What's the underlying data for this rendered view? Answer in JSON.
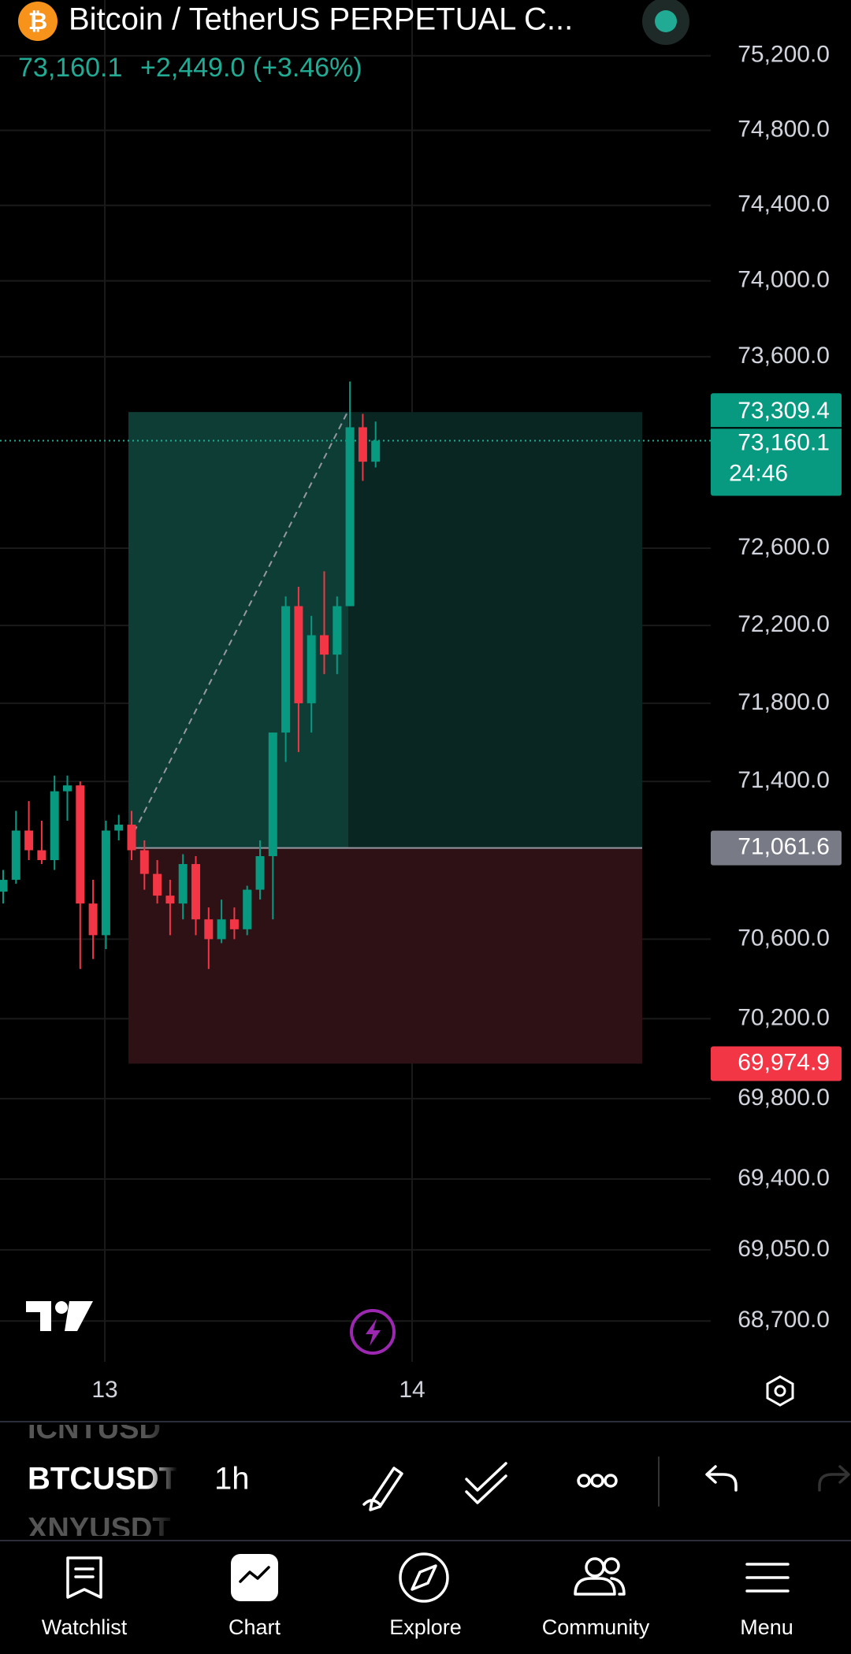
{
  "header": {
    "title": "Bitcoin / TetherUS PERPETUAL C...",
    "price": "73,160.1",
    "change": "+2,449.0 (+3.46%)"
  },
  "chart_data": {
    "type": "candlestick",
    "log_scale": true,
    "grid": true,
    "up_color": "#089981",
    "down_color": "#f23645",
    "open": [
      70840,
      70900,
      71150,
      71050,
      71000,
      71350,
      71380,
      70780,
      70620,
      71150,
      71180,
      71050,
      70930,
      70820,
      70780,
      70980,
      70700,
      70600,
      70700,
      70650,
      70850,
      71020,
      71650,
      72300,
      71800,
      72150,
      72050,
      72300,
      73230,
      73050
    ],
    "high": [
      70950,
      71250,
      71300,
      71200,
      71430,
      71430,
      71400,
      70900,
      71200,
      71230,
      71250,
      71100,
      71000,
      70900,
      71030,
      71020,
      70760,
      70800,
      70760,
      70870,
      71100,
      71650,
      72350,
      72400,
      72250,
      72480,
      72350,
      73470,
      73300,
      73260
    ],
    "low": [
      70780,
      70880,
      71000,
      70980,
      70950,
      71200,
      70450,
      70500,
      70550,
      71100,
      71000,
      70850,
      70780,
      70620,
      70700,
      70620,
      70450,
      70580,
      70600,
      70620,
      70800,
      70700,
      71500,
      71550,
      71650,
      71950,
      71950,
      72300,
      72950,
      73020
    ],
    "close": [
      70900,
      71150,
      71050,
      71000,
      71350,
      71380,
      70780,
      70620,
      71150,
      71180,
      71050,
      70930,
      70820,
      70780,
      70980,
      70700,
      70600,
      70700,
      70650,
      70850,
      71020,
      71650,
      72300,
      71800,
      72150,
      72050,
      72300,
      73230,
      73050,
      73160
    ],
    "ylim": [
      68500,
      75500
    ],
    "yticks": [
      {
        "value": 75200,
        "label": "75,200.0"
      },
      {
        "value": 74800,
        "label": "74,800.0"
      },
      {
        "value": 74400,
        "label": "74,400.0"
      },
      {
        "value": 74000,
        "label": "74,000.0"
      },
      {
        "value": 73600,
        "label": "73,600.0"
      },
      {
        "value": 72600,
        "label": "72,600.0"
      },
      {
        "value": 72200,
        "label": "72,200.0"
      },
      {
        "value": 71800,
        "label": "71,800.0"
      },
      {
        "value": 71400,
        "label": "71,400.0"
      },
      {
        "value": 70600,
        "label": "70,600.0"
      },
      {
        "value": 70200,
        "label": "70,200.0"
      },
      {
        "value": 69800,
        "label": "69,800.0"
      },
      {
        "value": 69400,
        "label": "69,400.0"
      },
      {
        "value": 69050,
        "label": "69,050.0"
      },
      {
        "value": 68700,
        "label": "68,700.0"
      }
    ],
    "x_labels": [
      "13",
      "14"
    ],
    "position": {
      "target": {
        "value": 73309.4,
        "label": "73,309.4"
      },
      "entry": {
        "value": 71061.6,
        "label": "71,061.6"
      },
      "stop": {
        "value": 69974.9,
        "label": "69,974.9"
      }
    },
    "last_price": {
      "value": 73160.1,
      "label": "73,160.1"
    },
    "countdown": "24:46"
  },
  "toolbar": {
    "symbols": [
      "ICNTUSD",
      "BTCUSDT",
      "XNYUSDT"
    ],
    "interval": "1h"
  },
  "nav": [
    "Watchlist",
    "Chart",
    "Explore",
    "Community",
    "Menu"
  ]
}
